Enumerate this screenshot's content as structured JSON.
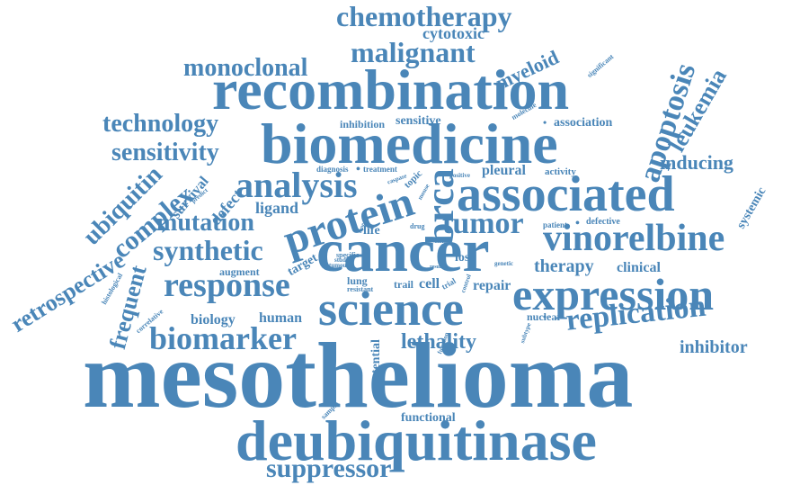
{
  "cloud": {
    "color": "#4a86b8",
    "background": "#ffffff",
    "words": [
      "mesothelioma",
      "deubiquitinase",
      "cancer",
      "recombination",
      "biomedicine",
      "associated",
      "science",
      "expression",
      "vinorelbine",
      "protein",
      "brca",
      "analysis",
      "tumor",
      "chemotherapy",
      "malignant",
      "monoclonal",
      "technology",
      "sensitivity",
      "response",
      "synthetic",
      "mutation",
      "biomarker",
      "replication",
      "apoptosis",
      "leukemia",
      "suppressor",
      "complex",
      "ubiquitin",
      "retrospective",
      "frequent",
      "therapy",
      "inhibitor",
      "lethality",
      "inducing",
      "cytotoxic",
      "myeloid",
      "ligand",
      "human",
      "biology",
      "defect",
      "survival",
      "pleural",
      "clinical",
      "potential",
      "functional",
      "systemic",
      "repair",
      "cell",
      "nuclear",
      "loss",
      "life",
      "lung",
      "trail",
      "target",
      "augment",
      "sensitive",
      "inhibition",
      "association",
      "diagnosis",
      "treatment",
      "activity",
      "positive",
      "patient",
      "defective",
      "drug",
      "topic",
      "histological",
      "correlative",
      "sample",
      "specific",
      "studies",
      "tumour",
      "resistant",
      "genetic",
      "result",
      "control",
      "trial",
      "function",
      "subtype",
      "mouse",
      "form",
      "time",
      "caspase",
      "predict",
      "molecule",
      "significant"
    ]
  }
}
